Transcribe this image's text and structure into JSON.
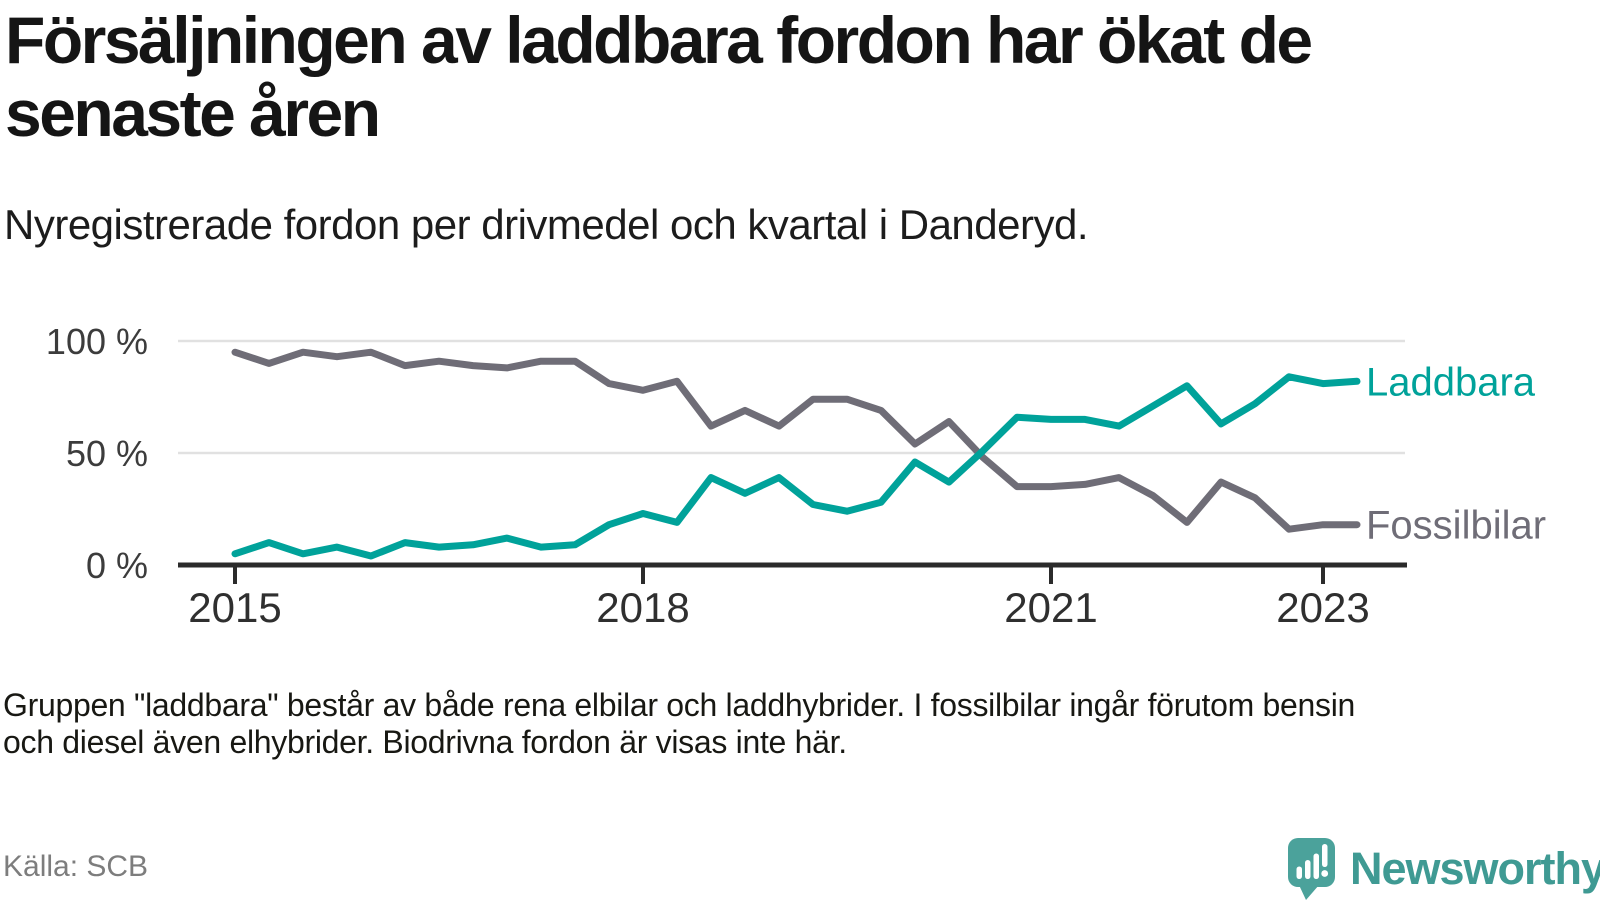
{
  "header": {
    "title_lines": [
      "Försäljningen av laddbara fordon har ökat de",
      "senaste åren"
    ],
    "subtitle": "Nyregistrerade fordon per drivmedel och kvartal i Danderyd."
  },
  "chart_data": {
    "type": "line",
    "x_unit": "quarter",
    "x": [
      "2015 Q1",
      "2015 Q2",
      "2015 Q3",
      "2015 Q4",
      "2016 Q1",
      "2016 Q2",
      "2016 Q3",
      "2016 Q4",
      "2017 Q1",
      "2017 Q2",
      "2017 Q3",
      "2017 Q4",
      "2018 Q1",
      "2018 Q2",
      "2018 Q3",
      "2018 Q4",
      "2019 Q1",
      "2019 Q2",
      "2019 Q3",
      "2019 Q4",
      "2020 Q1",
      "2020 Q2",
      "2020 Q3",
      "2020 Q4",
      "2021 Q1",
      "2021 Q2",
      "2021 Q3",
      "2021 Q4",
      "2022 Q1",
      "2022 Q2",
      "2022 Q3",
      "2022 Q4",
      "2023 Q1",
      "2023 Q2"
    ],
    "series": [
      {
        "name": "Laddbara",
        "color": "#00a29a",
        "values": [
          5,
          10,
          5,
          8,
          4,
          10,
          8,
          9,
          12,
          8,
          9,
          18,
          23,
          19,
          39,
          32,
          39,
          27,
          24,
          28,
          46,
          37,
          51,
          66,
          65,
          65,
          62,
          71,
          80,
          63,
          72,
          84,
          81,
          82
        ]
      },
      {
        "name": "Fossilbilar",
        "color": "#6f6d77",
        "values": [
          95,
          90,
          95,
          93,
          95,
          89,
          91,
          89,
          88,
          91,
          91,
          81,
          78,
          82,
          62,
          69,
          62,
          74,
          74,
          69,
          54,
          64,
          48,
          35,
          35,
          36,
          39,
          31,
          19,
          37,
          30,
          16,
          18,
          18
        ]
      }
    ],
    "yticks": [
      {
        "value": 0,
        "label": "0 %"
      },
      {
        "value": 50,
        "label": "50 %"
      },
      {
        "value": 100,
        "label": "100 %"
      }
    ],
    "xticks": [
      {
        "year": 2015,
        "label": "2015"
      },
      {
        "year": 2018,
        "label": "2018"
      },
      {
        "year": 2021,
        "label": "2021"
      },
      {
        "year": 2023,
        "label": "2023"
      }
    ],
    "ylim": [
      0,
      100
    ],
    "grid": "horizontal",
    "legend_position": "right-of-line-ends",
    "axis_color": "#2b2b2b",
    "grid_color": "#e1e1e1"
  },
  "footnote_lines": [
    "Gruppen \"laddbara\" består av både rena elbilar och laddhybrider. I fossilbilar ingår förutom bensin",
    "och diesel även elhybrider. Biodrivna fordon är visas inte här."
  ],
  "source": "Källa: SCB",
  "logo": {
    "text": "Newsworthy",
    "brand_color": "#4ba29b",
    "text_color": "#3f9a93"
  }
}
